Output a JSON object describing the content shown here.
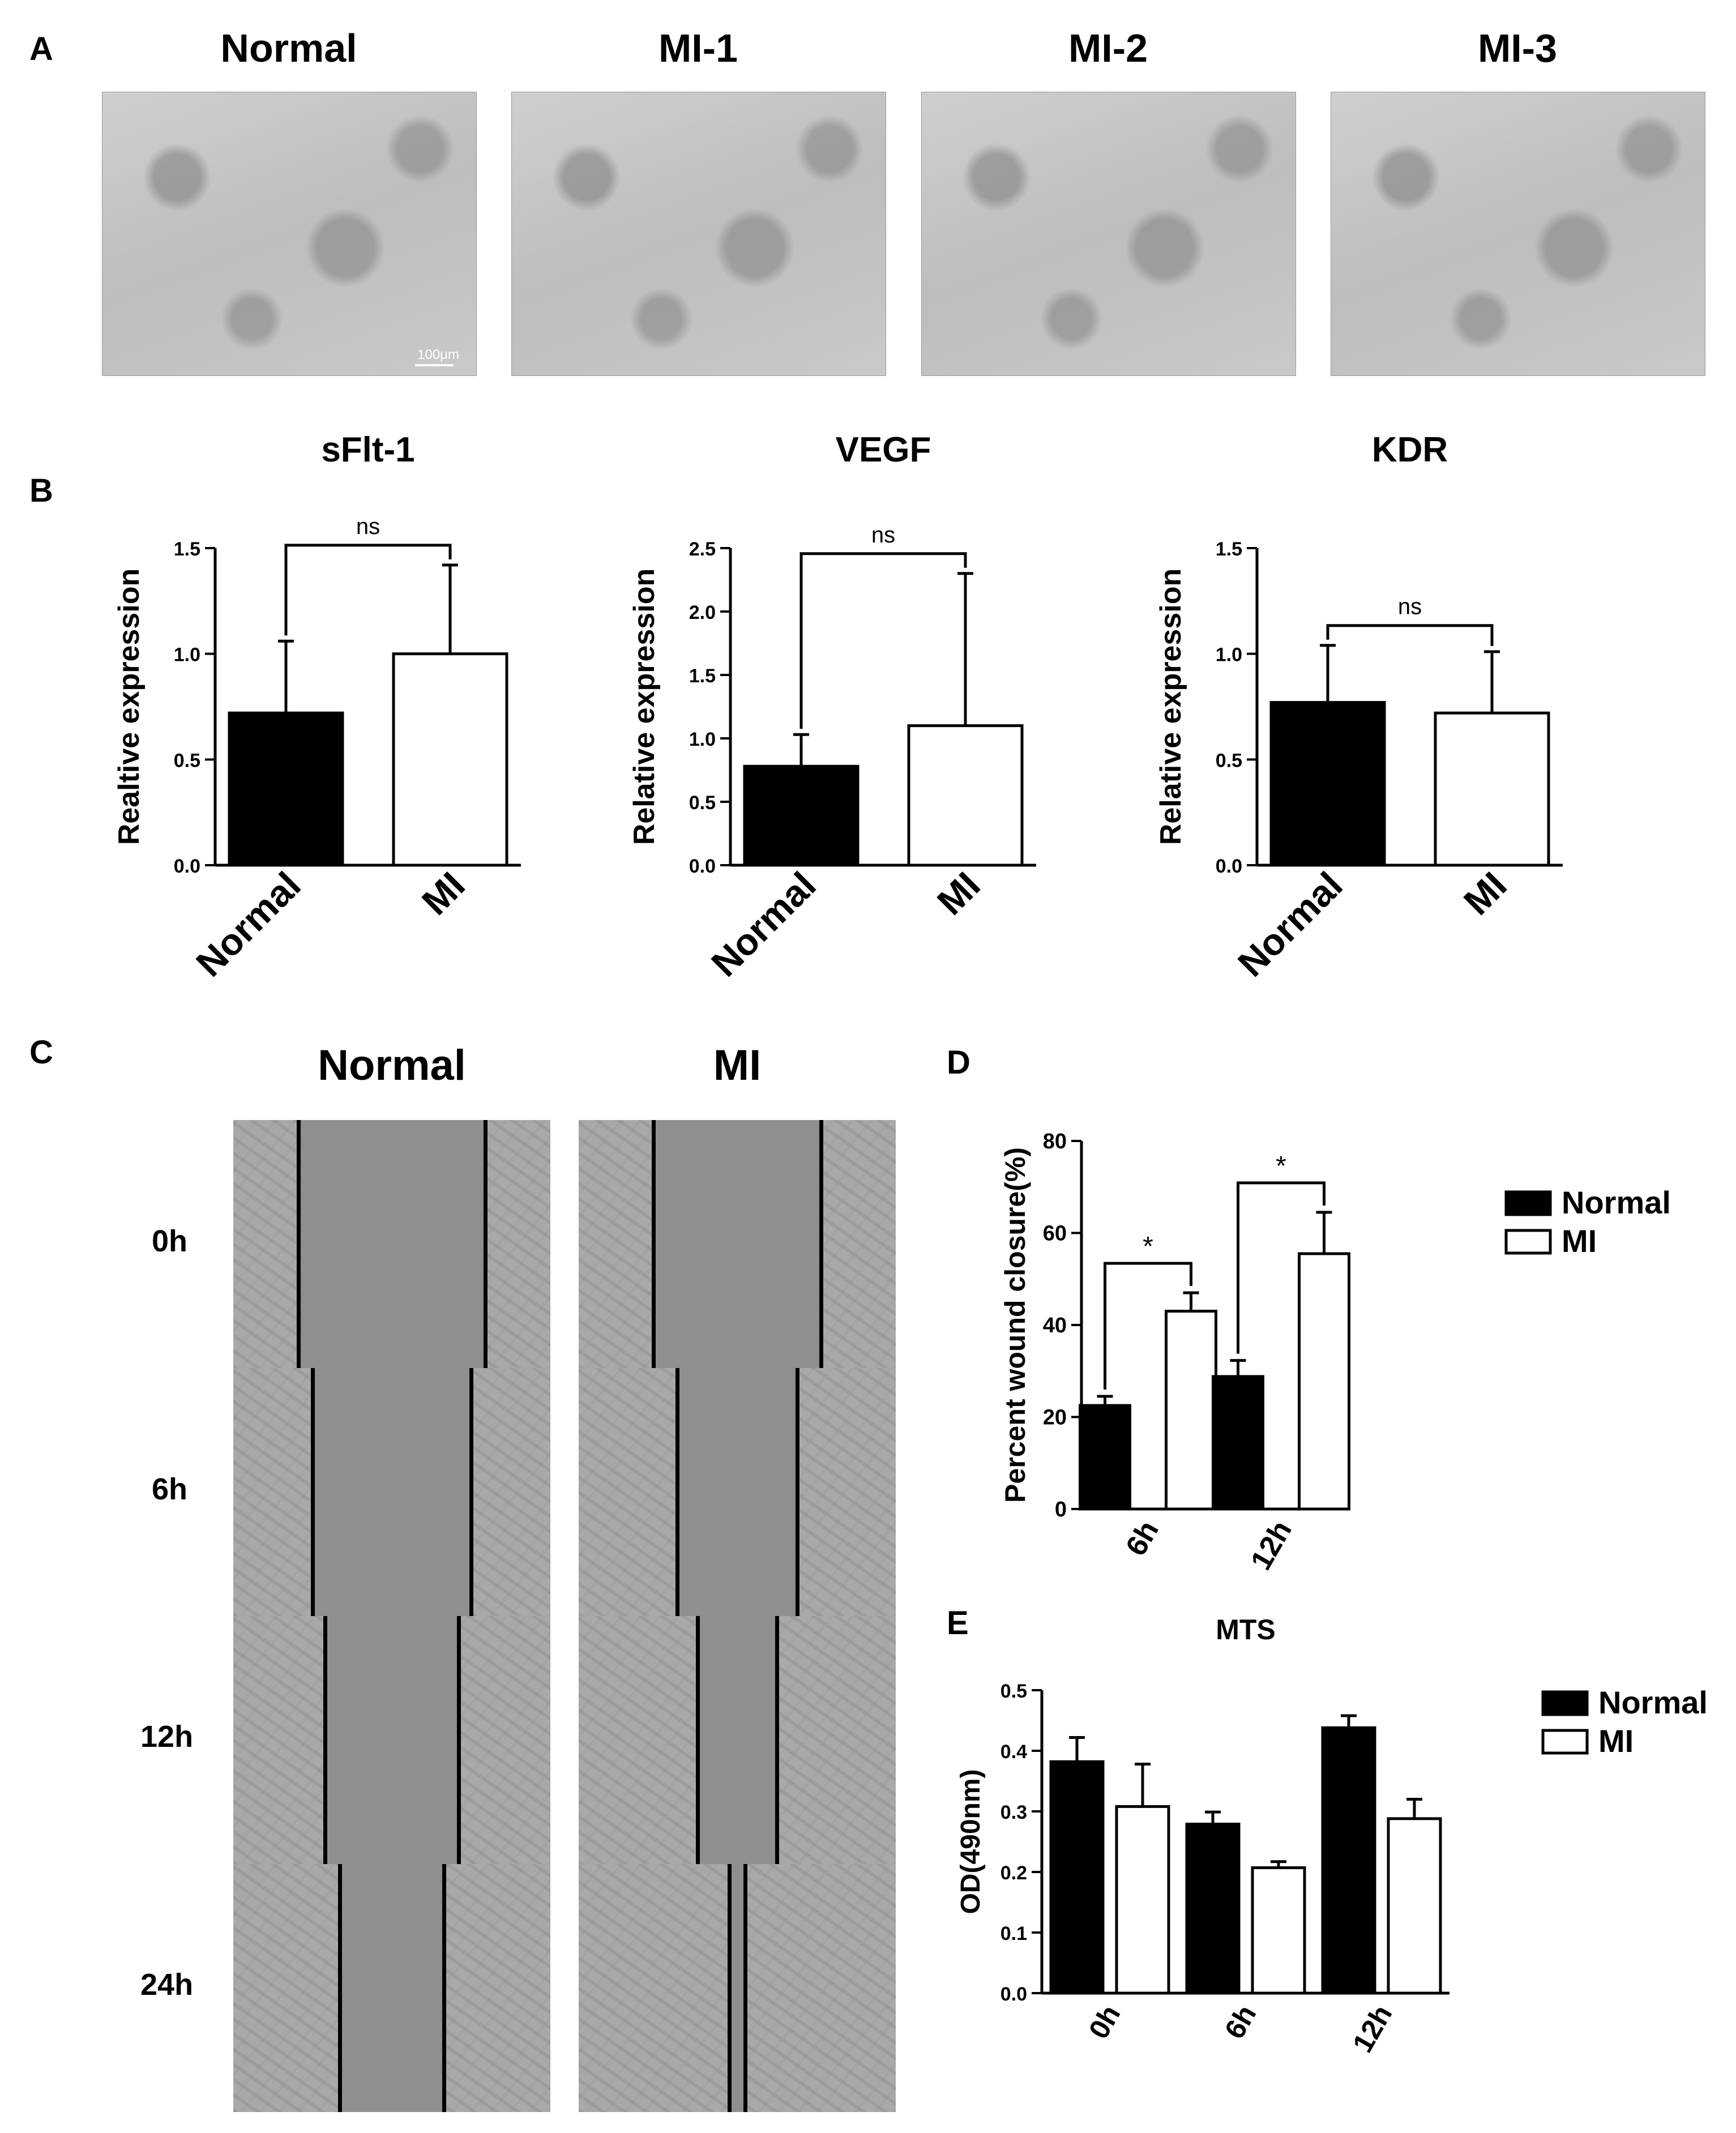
{
  "panelA": {
    "letter": "A",
    "images": [
      {
        "title": "Normal"
      },
      {
        "title": "MI-1"
      },
      {
        "title": "MI-2"
      },
      {
        "title": "MI-3"
      }
    ],
    "scalebar": "100μm"
  },
  "panelB": {
    "letter": "B"
  },
  "panelC": {
    "letter": "C",
    "columns": [
      "Normal",
      "MI"
    ],
    "rows": [
      "0h",
      "6h",
      "12h",
      "24h"
    ],
    "gap_fraction": {
      "Normal": [
        0.59,
        0.5,
        0.42,
        0.33
      ],
      "MI": [
        0.53,
        0.38,
        0.25,
        0.05
      ]
    }
  },
  "panelD": {
    "letter": "D"
  },
  "panelE": {
    "letter": "E"
  },
  "colors": {
    "bar_normal": "#000000",
    "bar_mi": "#ffffff",
    "stroke": "#000000"
  },
  "chart_data": [
    {
      "id": "sflt1",
      "type": "bar",
      "title": "sFlt-1",
      "ylabel": "Realtive expression",
      "categories": [
        "Normal",
        "MI"
      ],
      "ylim": [
        0,
        1.5
      ],
      "yticks": [
        "0.0",
        "0.5",
        "1.0",
        "1.5"
      ],
      "values": [
        0.72,
        1.0
      ],
      "errors": [
        0.34,
        0.42
      ],
      "annotations": [
        {
          "text": "ns",
          "between": [
            0,
            1
          ]
        }
      ]
    },
    {
      "id": "vegf",
      "type": "bar",
      "title": "VEGF",
      "ylabel": "Relative expression",
      "categories": [
        "Normal",
        "MI"
      ],
      "ylim": [
        0,
        2.5
      ],
      "yticks": [
        "0.0",
        "0.5",
        "1.0",
        "1.5",
        "2.0",
        "2.5"
      ],
      "values": [
        0.78,
        1.1
      ],
      "errors": [
        0.25,
        1.2
      ],
      "annotations": [
        {
          "text": "ns",
          "between": [
            0,
            1
          ]
        }
      ]
    },
    {
      "id": "kdr",
      "type": "bar",
      "title": "KDR",
      "ylabel": "Relative expression",
      "categories": [
        "Normal",
        "MI"
      ],
      "ylim": [
        0,
        1.5
      ],
      "yticks": [
        "0.0",
        "0.5",
        "1.0",
        "1.5"
      ],
      "values": [
        0.77,
        0.72
      ],
      "errors": [
        0.27,
        0.29
      ],
      "annotations": [
        {
          "text": "ns",
          "between": [
            0,
            1
          ]
        }
      ]
    },
    {
      "id": "wound",
      "type": "bar",
      "title": "",
      "ylabel": "Percent wound closure(%)",
      "categories": [
        "6h",
        "12h"
      ],
      "ylim": [
        0,
        80
      ],
      "yticks": [
        "0",
        "20",
        "40",
        "60",
        "80"
      ],
      "series": [
        {
          "name": "Normal",
          "values": [
            22.5,
            28.8
          ],
          "errors": [
            2,
            3.5
          ]
        },
        {
          "name": "MI",
          "values": [
            43,
            55.5
          ],
          "errors": [
            4,
            9
          ]
        }
      ],
      "annotations": [
        {
          "text": "*",
          "category": 0
        },
        {
          "text": "*",
          "category": 1
        }
      ],
      "legend": "right"
    },
    {
      "id": "mts",
      "type": "bar",
      "title": "MTS",
      "ylabel": "OD(490nm)",
      "categories": [
        "0h",
        "6h",
        "12h"
      ],
      "ylim": [
        0,
        0.5
      ],
      "yticks": [
        "0.0",
        "0.1",
        "0.2",
        "0.3",
        "0.4",
        "0.5"
      ],
      "series": [
        {
          "name": "Normal",
          "values": [
            0.382,
            0.279,
            0.438
          ],
          "errors": [
            0.04,
            0.02,
            0.02
          ]
        },
        {
          "name": "MI",
          "values": [
            0.308,
            0.207,
            0.288
          ],
          "errors": [
            0.07,
            0.01,
            0.032
          ]
        }
      ],
      "legend": "right"
    }
  ]
}
